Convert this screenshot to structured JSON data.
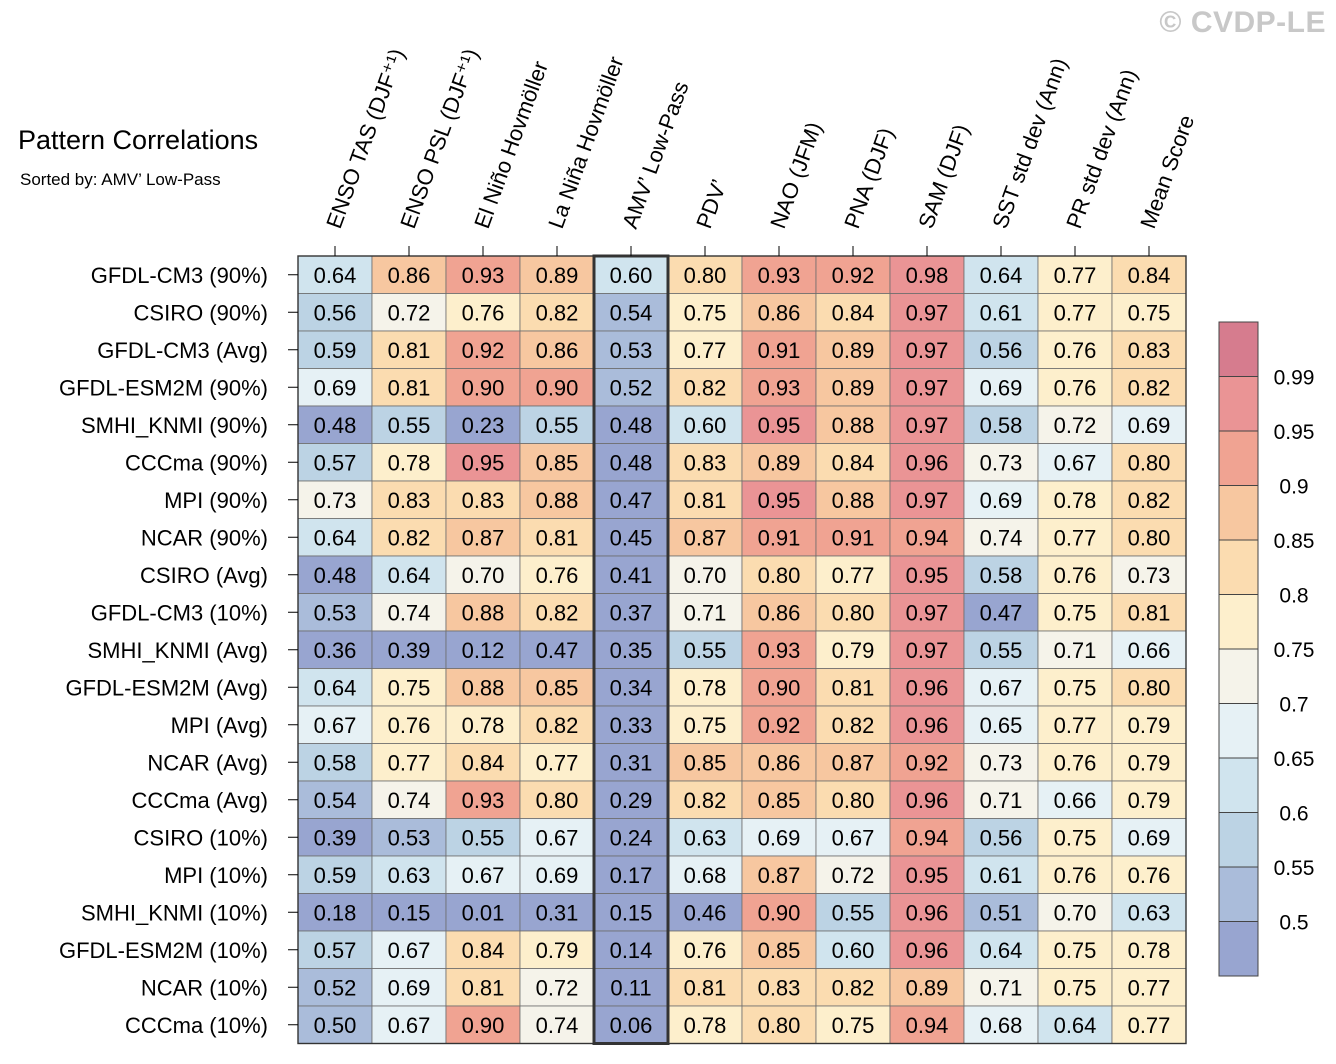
{
  "header": {
    "title": "Pattern Correlations",
    "subtitle": "Sorted by: AMV’ Low-Pass",
    "watermark": "© CVDP-LE"
  },
  "chart_data": {
    "type": "heatmap",
    "title": "Pattern Correlations",
    "subtitle": "Sorted by: AMV’ Low-Pass",
    "highlighted_column": "AMV’ Low-Pass",
    "columns": [
      "ENSO TAS (DJF⁺¹)",
      "ENSO PSL (DJF⁺¹)",
      "El Niño Hovmöller",
      "La Niña Hovmöller",
      "AMV’ Low-Pass",
      "PDV’",
      "NAO (JFM)",
      "PNA (DJF)",
      "SAM (DJF)",
      "SST std dev (Ann)",
      "PR std dev (Ann)",
      "Mean Score"
    ],
    "rows": [
      "GFDL-CM3 (90%)",
      "CSIRO (90%)",
      "GFDL-CM3 (Avg)",
      "GFDL-ESM2M (90%)",
      "SMHI_KNMI (90%)",
      "CCCma (90%)",
      "MPI (90%)",
      "NCAR (90%)",
      "CSIRO (Avg)",
      "GFDL-CM3 (10%)",
      "SMHI_KNMI (Avg)",
      "GFDL-ESM2M (Avg)",
      "MPI (Avg)",
      "NCAR (Avg)",
      "CCCma (Avg)",
      "CSIRO (10%)",
      "MPI (10%)",
      "SMHI_KNMI (10%)",
      "GFDL-ESM2M (10%)",
      "NCAR (10%)",
      "CCCma (10%)"
    ],
    "values": [
      [
        0.64,
        0.86,
        0.93,
        0.89,
        0.6,
        0.8,
        0.93,
        0.92,
        0.98,
        0.64,
        0.77,
        0.84
      ],
      [
        0.56,
        0.72,
        0.76,
        0.82,
        0.54,
        0.75,
        0.86,
        0.84,
        0.97,
        0.61,
        0.77,
        0.75
      ],
      [
        0.59,
        0.81,
        0.92,
        0.86,
        0.53,
        0.77,
        0.91,
        0.89,
        0.97,
        0.56,
        0.76,
        0.83
      ],
      [
        0.69,
        0.81,
        0.9,
        0.9,
        0.52,
        0.82,
        0.93,
        0.89,
        0.97,
        0.69,
        0.76,
        0.82
      ],
      [
        0.48,
        0.55,
        0.23,
        0.55,
        0.48,
        0.6,
        0.95,
        0.88,
        0.97,
        0.58,
        0.72,
        0.69
      ],
      [
        0.57,
        0.78,
        0.95,
        0.85,
        0.48,
        0.83,
        0.89,
        0.84,
        0.96,
        0.73,
        0.67,
        0.8
      ],
      [
        0.73,
        0.83,
        0.83,
        0.88,
        0.47,
        0.81,
        0.95,
        0.88,
        0.97,
        0.69,
        0.78,
        0.82
      ],
      [
        0.64,
        0.82,
        0.87,
        0.81,
        0.45,
        0.87,
        0.91,
        0.91,
        0.94,
        0.74,
        0.77,
        0.8
      ],
      [
        0.48,
        0.64,
        0.7,
        0.76,
        0.41,
        0.7,
        0.8,
        0.77,
        0.95,
        0.58,
        0.76,
        0.73
      ],
      [
        0.53,
        0.74,
        0.88,
        0.82,
        0.37,
        0.71,
        0.86,
        0.8,
        0.97,
        0.47,
        0.75,
        0.81
      ],
      [
        0.36,
        0.39,
        0.12,
        0.47,
        0.35,
        0.55,
        0.93,
        0.79,
        0.97,
        0.55,
        0.71,
        0.66
      ],
      [
        0.64,
        0.75,
        0.88,
        0.85,
        0.34,
        0.78,
        0.9,
        0.81,
        0.96,
        0.67,
        0.75,
        0.8
      ],
      [
        0.67,
        0.76,
        0.78,
        0.82,
        0.33,
        0.75,
        0.92,
        0.82,
        0.96,
        0.65,
        0.77,
        0.79
      ],
      [
        0.58,
        0.77,
        0.84,
        0.77,
        0.31,
        0.85,
        0.86,
        0.87,
        0.92,
        0.73,
        0.76,
        0.79
      ],
      [
        0.54,
        0.74,
        0.93,
        0.8,
        0.29,
        0.82,
        0.85,
        0.8,
        0.96,
        0.71,
        0.66,
        0.79
      ],
      [
        0.39,
        0.53,
        0.55,
        0.67,
        0.24,
        0.63,
        0.69,
        0.67,
        0.94,
        0.56,
        0.75,
        0.69
      ],
      [
        0.59,
        0.63,
        0.67,
        0.69,
        0.17,
        0.68,
        0.87,
        0.72,
        0.95,
        0.61,
        0.76,
        0.76
      ],
      [
        0.18,
        0.15,
        0.01,
        0.31,
        0.15,
        0.46,
        0.9,
        0.55,
        0.96,
        0.51,
        0.7,
        0.63
      ],
      [
        0.57,
        0.67,
        0.84,
        0.79,
        0.14,
        0.76,
        0.85,
        0.6,
        0.96,
        0.64,
        0.75,
        0.78
      ],
      [
        0.52,
        0.69,
        0.81,
        0.72,
        0.11,
        0.81,
        0.83,
        0.82,
        0.89,
        0.71,
        0.75,
        0.77
      ],
      [
        0.5,
        0.67,
        0.9,
        0.74,
        0.06,
        0.78,
        0.8,
        0.75,
        0.94,
        0.68,
        0.64,
        0.77
      ]
    ],
    "colorbar": {
      "levels": [
        0.5,
        0.55,
        0.6,
        0.65,
        0.7,
        0.75,
        0.8,
        0.85,
        0.9,
        0.95,
        0.99
      ],
      "labels": [
        "0.5",
        "0.55",
        "0.6",
        "0.65",
        "0.7",
        "0.75",
        "0.8",
        "0.85",
        "0.9",
        "0.95",
        "0.99"
      ],
      "colors": [
        "#98a5d0",
        "#aabcda",
        "#bcd3e4",
        "#d0e4ee",
        "#e6f1f5",
        "#f5f3ea",
        "#fdefcc",
        "#fbdcb0",
        "#f7c7a0",
        "#f0a392",
        "#ea9495",
        "#d67c8e"
      ]
    }
  }
}
